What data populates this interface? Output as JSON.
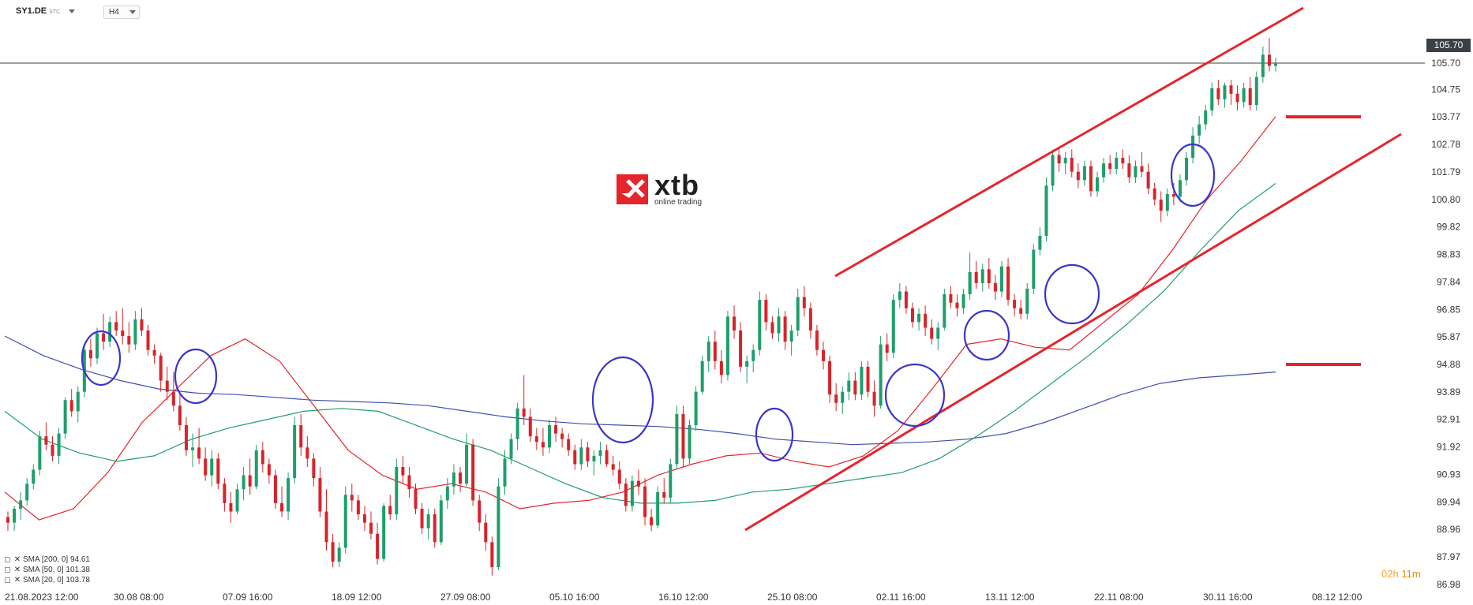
{
  "header": {
    "symbol": "SY1.DE",
    "symbol_suffix": "STC",
    "timeframe": "H4"
  },
  "logo": {
    "text": "xtb",
    "tagline": "online trading",
    "color": "#e4252b"
  },
  "legend": [
    {
      "label": "SMA [200, 0] 94.61",
      "color": "#3f4fb3"
    },
    {
      "label": "SMA [50, 0] 101.38",
      "color": "#1f9e6e"
    },
    {
      "label": "SMA [20, 0] 103.78",
      "color": "#e4252b"
    }
  ],
  "countdown": {
    "hours": "02h",
    "minutes": "11m"
  },
  "current_price_label": "105.70",
  "chart_data": {
    "type": "candlestick",
    "instrument": "SY1.DE",
    "timeframe": "H4",
    "ylim": [
      86.98,
      106.55
    ],
    "y_ticks": [
      "105.70",
      "104.75",
      "103.77",
      "102.78",
      "101.79",
      "100.80",
      "99.82",
      "98.83",
      "97.84",
      "96.85",
      "95.87",
      "94.88",
      "93.89",
      "92.91",
      "91.92",
      "90.93",
      "89.94",
      "88.96",
      "87.97",
      "86.98"
    ],
    "x_ticks": [
      "21.08.2023  12:00",
      "30.08  08:00",
      "07.09  16:00",
      "18.09  12:00",
      "27.09  08:00",
      "05.10  16:00",
      "16.10  12:00",
      "25.10  08:00",
      "02.11  16:00",
      "13.11  12:00",
      "22.11  08:00",
      "30.11  16:00",
      "08.12  12:00"
    ],
    "grid": false,
    "current_price": 105.7,
    "sma200": [
      95.9,
      95.2,
      94.7,
      94.3,
      94.0,
      93.85,
      93.8,
      93.7,
      93.6,
      93.55,
      93.5,
      93.4,
      93.2,
      93.0,
      92.85,
      92.75,
      92.7,
      92.65,
      92.55,
      92.4,
      92.2,
      92.1,
      92.0,
      92.05,
      92.1,
      92.2,
      92.4,
      92.8,
      93.3,
      93.8,
      94.2,
      94.4,
      94.5,
      94.61
    ],
    "sma50": [
      93.2,
      92.2,
      91.7,
      91.4,
      91.6,
      92.2,
      92.6,
      92.9,
      93.2,
      93.3,
      93.2,
      92.7,
      92.2,
      91.8,
      91.2,
      90.6,
      90.1,
      89.9,
      89.9,
      90.0,
      90.3,
      90.4,
      90.6,
      90.8,
      91.0,
      91.5,
      92.3,
      93.2,
      94.2,
      95.2,
      96.3,
      97.5,
      99.0,
      100.4,
      101.38
    ],
    "sma20": [
      90.3,
      89.3,
      89.7,
      91.0,
      92.8,
      94.0,
      95.2,
      95.8,
      95.0,
      93.4,
      91.8,
      90.9,
      90.4,
      90.6,
      90.3,
      89.7,
      89.9,
      90.0,
      90.3,
      90.9,
      91.3,
      91.6,
      91.7,
      91.4,
      91.2,
      91.6,
      92.5,
      94.0,
      95.6,
      95.8,
      95.5,
      95.4,
      96.4,
      97.4,
      99.0,
      100.8,
      102.2,
      103.78
    ],
    "trend_channel": {
      "upper": [
        {
          "date": "24.10.2023",
          "price": 97.8
        },
        {
          "date": "04.12.2023",
          "price": 106.6
        }
      ],
      "lower": [
        {
          "date": "20.10.2023",
          "price": 89.2
        },
        {
          "date": "07.12.2023",
          "price": 102.6
        }
      ]
    },
    "annotations": {
      "highlight_circles": 9,
      "horizontal_levels": [
        103.77,
        94.88
      ]
    },
    "candles": [
      [
        89.4,
        89.6,
        88.9,
        89.2
      ],
      [
        89.2,
        89.8,
        88.9,
        89.7
      ],
      [
        89.7,
        90.3,
        89.3,
        90.0
      ],
      [
        90.0,
        90.8,
        89.8,
        90.6
      ],
      [
        90.6,
        91.3,
        90.4,
        91.1
      ],
      [
        91.1,
        92.5,
        90.9,
        92.3
      ],
      [
        92.3,
        92.8,
        91.8,
        92.0
      ],
      [
        92.0,
        92.3,
        91.4,
        91.6
      ],
      [
        91.6,
        92.6,
        91.3,
        92.4
      ],
      [
        92.4,
        93.7,
        92.2,
        93.6
      ],
      [
        93.6,
        94.0,
        93.0,
        93.2
      ],
      [
        93.2,
        94.1,
        92.8,
        93.9
      ],
      [
        93.9,
        95.6,
        93.7,
        95.4
      ],
      [
        95.4,
        95.8,
        94.8,
        95.1
      ],
      [
        95.1,
        96.2,
        94.9,
        96.0
      ],
      [
        96.0,
        96.7,
        95.4,
        95.7
      ],
      [
        95.7,
        96.6,
        95.5,
        96.4
      ],
      [
        96.4,
        96.8,
        95.9,
        96.1
      ],
      [
        96.1,
        96.9,
        95.6,
        95.9
      ],
      [
        95.9,
        96.4,
        95.3,
        95.6
      ],
      [
        95.6,
        96.8,
        95.4,
        96.5
      ],
      [
        96.5,
        96.9,
        95.9,
        96.1
      ],
      [
        96.1,
        96.3,
        95.2,
        95.4
      ],
      [
        95.4,
        95.6,
        94.9,
        95.2
      ],
      [
        95.2,
        95.3,
        93.9,
        94.3
      ],
      [
        94.3,
        94.8,
        93.6,
        93.9
      ],
      [
        93.9,
        94.6,
        93.2,
        93.4
      ],
      [
        93.4,
        93.8,
        92.5,
        92.7
      ],
      [
        92.7,
        93.0,
        91.6,
        91.8
      ],
      [
        91.8,
        92.4,
        91.2,
        91.9
      ],
      [
        91.9,
        92.6,
        91.3,
        91.5
      ],
      [
        91.5,
        91.9,
        90.7,
        90.9
      ],
      [
        90.9,
        91.8,
        90.5,
        91.5
      ],
      [
        91.5,
        91.7,
        90.4,
        90.6
      ],
      [
        90.6,
        90.8,
        89.6,
        89.9
      ],
      [
        89.9,
        90.3,
        89.2,
        89.6
      ],
      [
        89.6,
        90.6,
        89.5,
        90.4
      ],
      [
        90.4,
        91.2,
        90.0,
        90.9
      ],
      [
        90.9,
        91.5,
        90.2,
        90.5
      ],
      [
        90.5,
        92.0,
        90.4,
        91.8
      ],
      [
        91.8,
        92.1,
        91.0,
        91.3
      ],
      [
        91.3,
        91.5,
        90.6,
        90.9
      ],
      [
        90.9,
        91.1,
        89.7,
        89.9
      ],
      [
        89.9,
        90.5,
        89.4,
        89.6
      ],
      [
        89.6,
        91.0,
        89.3,
        90.8
      ],
      [
        90.8,
        93.0,
        90.6,
        92.7
      ],
      [
        92.7,
        93.1,
        91.6,
        91.9
      ],
      [
        91.9,
        92.3,
        91.2,
        91.5
      ],
      [
        91.5,
        91.7,
        90.5,
        90.8
      ],
      [
        90.8,
        91.2,
        89.4,
        89.6
      ],
      [
        89.6,
        90.4,
        88.2,
        88.5
      ],
      [
        88.5,
        88.8,
        87.6,
        87.8
      ],
      [
        87.8,
        88.5,
        87.6,
        88.3
      ],
      [
        88.3,
        90.5,
        88.1,
        90.2
      ],
      [
        90.2,
        90.6,
        89.6,
        90.0
      ],
      [
        90.0,
        90.2,
        89.3,
        89.5
      ],
      [
        89.5,
        89.8,
        88.9,
        89.2
      ],
      [
        89.2,
        89.6,
        88.6,
        88.8
      ],
      [
        88.8,
        89.2,
        87.7,
        87.9
      ],
      [
        87.9,
        89.9,
        87.8,
        89.8
      ],
      [
        89.8,
        90.2,
        89.3,
        89.5
      ],
      [
        89.5,
        91.5,
        89.3,
        91.2
      ],
      [
        91.2,
        91.6,
        90.6,
        90.9
      ],
      [
        90.9,
        91.2,
        90.1,
        90.4
      ],
      [
        90.4,
        90.6,
        89.5,
        89.7
      ],
      [
        89.7,
        89.9,
        88.8,
        89.0
      ],
      [
        89.0,
        89.7,
        88.6,
        89.5
      ],
      [
        89.5,
        89.7,
        88.3,
        88.5
      ],
      [
        88.5,
        90.2,
        88.4,
        90.0
      ],
      [
        90.0,
        90.8,
        89.7,
        90.5
      ],
      [
        90.5,
        91.3,
        90.2,
        91.0
      ],
      [
        91.0,
        91.2,
        90.3,
        90.6
      ],
      [
        90.6,
        92.4,
        90.5,
        92.0
      ],
      [
        92.0,
        92.2,
        89.8,
        90.0
      ],
      [
        90.0,
        90.2,
        88.9,
        89.2
      ],
      [
        89.2,
        89.5,
        88.2,
        88.5
      ],
      [
        88.5,
        88.7,
        87.3,
        87.6
      ],
      [
        87.6,
        90.8,
        87.5,
        90.5
      ],
      [
        90.5,
        91.8,
        90.2,
        91.5
      ],
      [
        91.5,
        92.4,
        91.3,
        92.2
      ],
      [
        92.2,
        93.5,
        91.8,
        93.3
      ],
      [
        93.3,
        94.5,
        92.7,
        93.0
      ],
      [
        93.0,
        93.3,
        92.1,
        92.3
      ],
      [
        92.3,
        92.6,
        91.8,
        92.1
      ],
      [
        92.1,
        92.6,
        91.6,
        91.9
      ],
      [
        91.9,
        92.9,
        91.7,
        92.7
      ],
      [
        92.7,
        93.0,
        92.1,
        92.4
      ],
      [
        92.4,
        92.6,
        91.9,
        92.2
      ],
      [
        92.2,
        92.4,
        91.6,
        91.8
      ],
      [
        91.8,
        92.0,
        91.1,
        91.3
      ],
      [
        91.3,
        92.2,
        91.1,
        91.9
      ],
      [
        91.9,
        92.1,
        91.2,
        91.4
      ],
      [
        91.4,
        91.8,
        90.9,
        91.6
      ],
      [
        91.6,
        92.1,
        91.3,
        91.8
      ],
      [
        91.8,
        92.0,
        91.2,
        91.3
      ],
      [
        91.3,
        91.6,
        90.9,
        91.1
      ],
      [
        91.1,
        91.4,
        90.4,
        90.6
      ],
      [
        90.6,
        90.8,
        89.6,
        89.8
      ],
      [
        89.8,
        90.9,
        89.6,
        90.7
      ],
      [
        90.7,
        91.1,
        90.2,
        90.5
      ],
      [
        90.5,
        90.8,
        89.1,
        89.4
      ],
      [
        89.4,
        89.7,
        88.9,
        89.1
      ],
      [
        89.1,
        90.5,
        89.0,
        90.3
      ],
      [
        90.3,
        90.8,
        89.9,
        90.1
      ],
      [
        90.1,
        91.5,
        89.9,
        91.3
      ],
      [
        91.3,
        93.4,
        91.1,
        93.1
      ],
      [
        93.1,
        93.4,
        91.2,
        91.5
      ],
      [
        91.5,
        92.9,
        91.3,
        92.7
      ],
      [
        92.7,
        94.1,
        92.5,
        93.9
      ],
      [
        93.9,
        95.2,
        93.8,
        95.0
      ],
      [
        95.0,
        95.9,
        94.6,
        95.7
      ],
      [
        95.7,
        96.1,
        94.7,
        95.0
      ],
      [
        95.0,
        95.4,
        94.2,
        94.5
      ],
      [
        94.5,
        96.8,
        94.3,
        96.6
      ],
      [
        96.6,
        97.0,
        95.8,
        96.1
      ],
      [
        96.1,
        96.4,
        94.6,
        94.8
      ],
      [
        94.8,
        95.2,
        94.2,
        95.0
      ],
      [
        95.0,
        95.6,
        94.6,
        95.4
      ],
      [
        95.4,
        97.5,
        95.2,
        97.2
      ],
      [
        97.2,
        97.4,
        96.1,
        96.4
      ],
      [
        96.4,
        96.6,
        95.8,
        96.0
      ],
      [
        96.0,
        96.9,
        95.7,
        96.6
      ],
      [
        96.6,
        96.8,
        95.4,
        95.7
      ],
      [
        95.7,
        96.3,
        95.2,
        96.1
      ],
      [
        96.1,
        97.6,
        95.9,
        97.3
      ],
      [
        97.3,
        97.7,
        96.6,
        96.9
      ],
      [
        96.9,
        97.1,
        95.8,
        96.1
      ],
      [
        96.1,
        96.3,
        95.2,
        95.4
      ],
      [
        95.4,
        95.7,
        94.7,
        95.0
      ],
      [
        95.0,
        95.2,
        93.5,
        93.8
      ],
      [
        93.8,
        94.2,
        93.2,
        93.5
      ],
      [
        93.5,
        94.1,
        93.1,
        93.9
      ],
      [
        93.9,
        94.6,
        93.6,
        94.3
      ],
      [
        94.3,
        94.6,
        93.6,
        93.8
      ],
      [
        93.8,
        95.0,
        93.6,
        94.8
      ],
      [
        94.8,
        95.0,
        93.7,
        93.9
      ],
      [
        93.9,
        94.3,
        93.0,
        93.4
      ],
      [
        93.4,
        95.9,
        93.3,
        95.6
      ],
      [
        95.6,
        96.0,
        95.0,
        95.3
      ],
      [
        95.3,
        97.4,
        95.1,
        97.2
      ],
      [
        97.2,
        97.8,
        96.9,
        97.5
      ],
      [
        97.5,
        97.7,
        96.7,
        96.9
      ],
      [
        96.9,
        97.1,
        96.2,
        96.4
      ],
      [
        96.4,
        96.9,
        96.1,
        96.7
      ],
      [
        96.7,
        97.0,
        95.9,
        96.2
      ],
      [
        96.2,
        96.5,
        95.6,
        95.8
      ],
      [
        95.8,
        96.4,
        95.4,
        96.2
      ],
      [
        96.2,
        97.6,
        96.1,
        97.4
      ],
      [
        97.4,
        97.7,
        96.9,
        97.1
      ],
      [
        97.1,
        97.4,
        96.6,
        96.9
      ],
      [
        96.9,
        97.6,
        96.7,
        97.4
      ],
      [
        97.4,
        98.9,
        97.2,
        98.2
      ],
      [
        98.2,
        98.6,
        97.6,
        97.8
      ],
      [
        97.8,
        98.5,
        97.5,
        98.3
      ],
      [
        98.3,
        98.7,
        97.6,
        97.8
      ],
      [
        97.8,
        98.1,
        97.2,
        97.5
      ],
      [
        97.5,
        98.6,
        97.3,
        98.4
      ],
      [
        98.4,
        98.7,
        97.0,
        97.2
      ],
      [
        97.2,
        97.4,
        96.6,
        96.9
      ],
      [
        96.9,
        97.2,
        96.5,
        96.7
      ],
      [
        96.7,
        97.8,
        96.5,
        97.6
      ],
      [
        97.6,
        99.2,
        97.4,
        99.0
      ],
      [
        99.0,
        99.8,
        98.8,
        99.5
      ],
      [
        99.5,
        101.6,
        99.3,
        101.3
      ],
      [
        101.3,
        102.6,
        101.1,
        102.4
      ],
      [
        102.4,
        102.7,
        101.8,
        102.1
      ],
      [
        102.1,
        102.5,
        101.7,
        102.3
      ],
      [
        102.3,
        102.6,
        101.6,
        101.8
      ],
      [
        101.8,
        102.1,
        101.2,
        101.5
      ],
      [
        101.5,
        102.2,
        101.3,
        102.0
      ],
      [
        102.0,
        102.2,
        100.9,
        101.1
      ],
      [
        101.1,
        101.8,
        100.9,
        101.6
      ],
      [
        101.6,
        102.3,
        101.4,
        102.1
      ],
      [
        102.1,
        102.4,
        101.7,
        101.9
      ],
      [
        101.9,
        102.5,
        101.7,
        102.3
      ],
      [
        102.3,
        102.6,
        101.9,
        102.1
      ],
      [
        102.1,
        102.4,
        101.4,
        101.6
      ],
      [
        101.6,
        102.2,
        101.4,
        102.0
      ],
      [
        102.0,
        102.5,
        101.6,
        101.8
      ],
      [
        101.8,
        102.1,
        101.0,
        101.2
      ],
      [
        101.2,
        101.4,
        100.6,
        100.8
      ],
      [
        100.8,
        101.1,
        100.0,
        100.4
      ],
      [
        100.4,
        101.2,
        100.2,
        101.0
      ],
      [
        101.0,
        101.4,
        100.6,
        100.9
      ],
      [
        100.9,
        101.7,
        100.7,
        101.5
      ],
      [
        101.5,
        102.5,
        101.3,
        102.3
      ],
      [
        102.3,
        103.4,
        102.1,
        103.1
      ],
      [
        103.1,
        103.8,
        102.8,
        103.5
      ],
      [
        103.5,
        104.2,
        103.3,
        104.0
      ],
      [
        104.0,
        105.0,
        103.8,
        104.8
      ],
      [
        104.8,
        105.1,
        104.2,
        104.4
      ],
      [
        104.4,
        105.0,
        104.1,
        104.9
      ],
      [
        104.9,
        105.1,
        104.2,
        104.6
      ],
      [
        104.6,
        104.9,
        104.0,
        104.3
      ],
      [
        104.3,
        105.0,
        104.1,
        104.8
      ],
      [
        104.8,
        105.2,
        104.0,
        104.2
      ],
      [
        104.2,
        105.4,
        104.0,
        105.2
      ],
      [
        105.2,
        106.3,
        105.0,
        106.0
      ],
      [
        106.0,
        106.6,
        105.4,
        105.6
      ],
      [
        105.6,
        105.9,
        105.4,
        105.7
      ]
    ]
  }
}
